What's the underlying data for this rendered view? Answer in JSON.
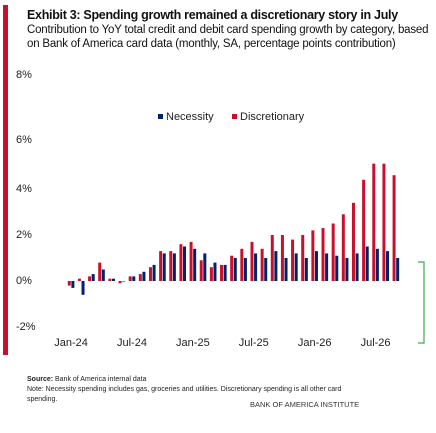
{
  "chart_data": {
    "type": "bar",
    "title": "Exhibit 3: Spending growth remained a discretionary story in July",
    "subtitle": "Contribution to YoY total credit and debit card spending growth by category, based on Bank of America card data (monthly, SA, percentage points contribution)",
    "categories": [
      "Jan-24",
      null,
      null,
      null,
      null,
      null,
      "Jul-24",
      null,
      null,
      null,
      null,
      null,
      "Jan-25",
      null,
      null,
      null,
      null,
      null,
      "Jul-25",
      null,
      null,
      null,
      null,
      null,
      "Jan-26",
      null,
      null,
      null,
      null,
      null,
      "Jul-26",
      null,
      null
    ],
    "series": [
      {
        "name": "Necessity",
        "color": "#012169",
        "values": [
          -0.3,
          -0.6,
          0.3,
          0.5,
          0.1,
          0.0,
          0.2,
          0.4,
          0.7,
          1.2,
          1.2,
          1.5,
          1.4,
          1.2,
          0.8,
          0.7,
          1.0,
          1.0,
          1.2,
          1.0,
          1.3,
          1.0,
          1.2,
          1.0,
          1.3,
          1.2,
          1.1,
          1.0,
          1.2,
          1.5,
          1.4,
          1.3,
          1.0
        ]
      },
      {
        "name": "Discretionary",
        "color": "#c8102e",
        "values": [
          -0.2,
          0.1,
          0.2,
          0.8,
          0.1,
          -0.1,
          0.2,
          0.3,
          0.6,
          1.3,
          1.3,
          1.6,
          1.7,
          0.9,
          0.6,
          0.7,
          1.1,
          1.4,
          1.7,
          1.4,
          2.0,
          2.0,
          1.8,
          2.0,
          2.2,
          2.3,
          2.5,
          2.9,
          3.4,
          4.4,
          5.1,
          5.1,
          4.6
        ]
      }
    ],
    "ylim": [
      -2,
      8
    ],
    "yticks": [
      {
        "value": -2,
        "label": "-2%"
      },
      {
        "value": 0,
        "label": "0%"
      },
      {
        "value": 2,
        "label": "2%"
      },
      {
        "value": 4,
        "label": "4%"
      },
      {
        "value": 6,
        "label": "6%"
      },
      {
        "value": 8,
        "label": "8%"
      }
    ],
    "grid": false,
    "legend": "top",
    "source_label": "Source:",
    "source": "Bank of America internal data",
    "note": "Note: Necessity spending includes gas, groceries and utilities. Discretionary spending is all other card spending.",
    "brand": "BANK OF AMERICA INSTITUTE"
  }
}
